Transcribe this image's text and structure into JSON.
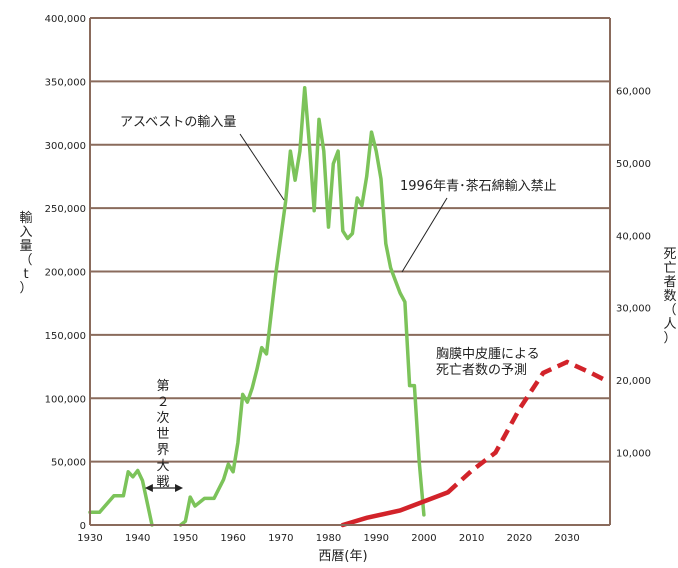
{
  "chart_data": {
    "type": "line",
    "xlabel": "西暦(年)",
    "ylabel": "輸入量(t)",
    "y2label": "死亡者数(人)",
    "xlim": [
      1930,
      2039
    ],
    "ylim": [
      0,
      400000
    ],
    "y2lim": [
      0,
      70000
    ],
    "grid": true,
    "x_ticks": [
      "1930",
      "1940",
      "1950",
      "1960",
      "1970",
      "1980",
      "1990",
      "2000",
      "2010",
      "2020",
      "2030"
    ],
    "y_ticks": [
      "0",
      "50,000",
      "100,000",
      "150,000",
      "200,000",
      "250,000",
      "300,000",
      "350,000",
      "400,000"
    ],
    "y2_ticks": [
      "10,000",
      "20,000",
      "30,000",
      "40,000",
      "50,000",
      "60,000"
    ],
    "series": [
      {
        "name": "アスベストの輸入量",
        "color": "#7cc35a",
        "axis": "left",
        "segments": [
          [
            [
              1930,
              10000
            ],
            [
              1932,
              10000
            ],
            [
              1935,
              23000
            ],
            [
              1937,
              23000
            ],
            [
              1938,
              42000
            ],
            [
              1939,
              38000
            ],
            [
              1940,
              43000
            ],
            [
              1941,
              35000
            ],
            [
              1943,
              0
            ]
          ],
          [
            [
              1949,
              0
            ],
            [
              1950,
              3000
            ],
            [
              1951,
              22000
            ],
            [
              1952,
              15000
            ],
            [
              1954,
              21000
            ],
            [
              1956,
              21000
            ],
            [
              1958,
              36000
            ],
            [
              1959,
              48000
            ],
            [
              1960,
              42000
            ],
            [
              1961,
              65000
            ],
            [
              1962,
              103000
            ],
            [
              1963,
              97000
            ],
            [
              1964,
              108000
            ],
            [
              1965,
              123000
            ],
            [
              1966,
              140000
            ],
            [
              1967,
              135000
            ],
            [
              1969,
              200000
            ],
            [
              1971,
              255000
            ],
            [
              1972,
              295000
            ],
            [
              1973,
              272000
            ],
            [
              1974,
              295000
            ],
            [
              1975,
              345000
            ],
            [
              1976,
              300000
            ],
            [
              1977,
              248000
            ],
            [
              1978,
              320000
            ],
            [
              1979,
              295000
            ],
            [
              1980,
              235000
            ],
            [
              1981,
              285000
            ],
            [
              1982,
              295000
            ],
            [
              1983,
              232000
            ],
            [
              1984,
              226000
            ],
            [
              1985,
              230000
            ],
            [
              1986,
              258000
            ],
            [
              1987,
              252000
            ],
            [
              1988,
              275000
            ],
            [
              1989,
              310000
            ],
            [
              1990,
              295000
            ],
            [
              1991,
              273000
            ],
            [
              1992,
              222000
            ],
            [
              1993,
              203000
            ],
            [
              1994,
              193000
            ],
            [
              1995,
              183000
            ],
            [
              1996,
              176000
            ],
            [
              1997,
              110000
            ],
            [
              1998,
              110000
            ],
            [
              1999,
              50000
            ],
            [
              2000,
              8000
            ]
          ]
        ]
      },
      {
        "name": "胸膜中皮腫による死亡者数",
        "color": "#d2232a",
        "axis": "right",
        "solid": [
          [
            1983,
            0
          ],
          [
            1988,
            1000
          ],
          [
            1995,
            2000
          ],
          [
            2005,
            4500
          ]
        ],
        "dashed": [
          [
            2005,
            4500
          ],
          [
            2010,
            7500
          ],
          [
            2015,
            10000
          ],
          [
            2020,
            16000
          ],
          [
            2025,
            21000
          ],
          [
            2030,
            22500
          ],
          [
            2035,
            21000
          ],
          [
            2038,
            20000
          ]
        ]
      }
    ],
    "annotations": {
      "import_label": "アスベストの輸入量",
      "ban_label": "1996年青･茶石綿輸入禁止",
      "forecast_line1": "胸膜中皮腫による",
      "forecast_line2": "死亡者数の予測",
      "war_label": "第２次世界大戦"
    }
  }
}
